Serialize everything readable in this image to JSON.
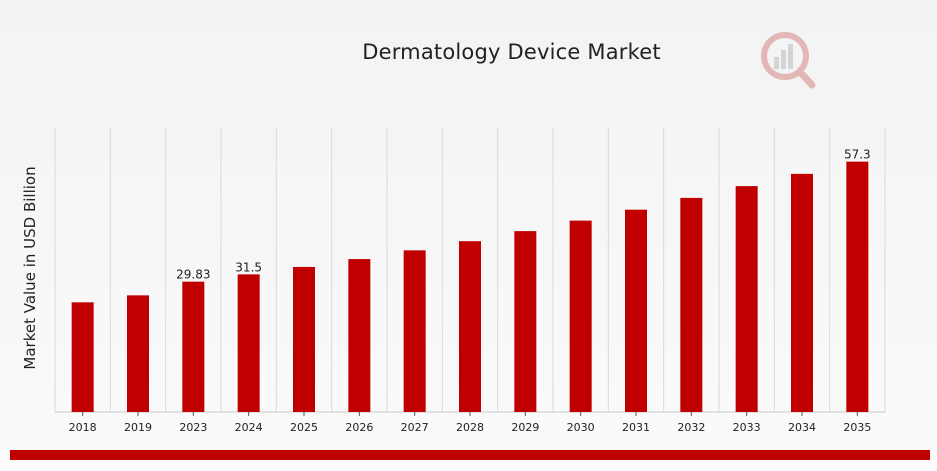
{
  "chart_data": {
    "type": "bar",
    "title": "Dermatology Device Market",
    "xlabel": "",
    "ylabel": "Market Value in USD Billion",
    "categories": [
      "2018",
      "2019",
      "2023",
      "2024",
      "2025",
      "2026",
      "2027",
      "2028",
      "2029",
      "2030",
      "2031",
      "2032",
      "2033",
      "2034",
      "2035"
    ],
    "series": [
      {
        "values": [
          25.1,
          26.7,
          29.83,
          31.5,
          33.2,
          35.0,
          37.0,
          39.1,
          41.4,
          43.8,
          46.3,
          49.0,
          51.7,
          54.5,
          57.3
        ],
        "data_labels": [
          "",
          "",
          "29.83",
          "31.5",
          "",
          "",
          "",
          "",
          "",
          "",
          "",
          "",
          "",
          "",
          "57.3"
        ]
      }
    ],
    "ylim": [
      0,
      65
    ],
    "grid": {
      "vertical": true,
      "horizontal": false
    },
    "legend": "none",
    "colors": {
      "bar": "#c00000",
      "grid": "#d9d9d9",
      "baseline": "#c8c8c8"
    }
  },
  "branding": {
    "logo_icon": "market-research-logo-icon",
    "footer_bar_color": "#c00000"
  }
}
